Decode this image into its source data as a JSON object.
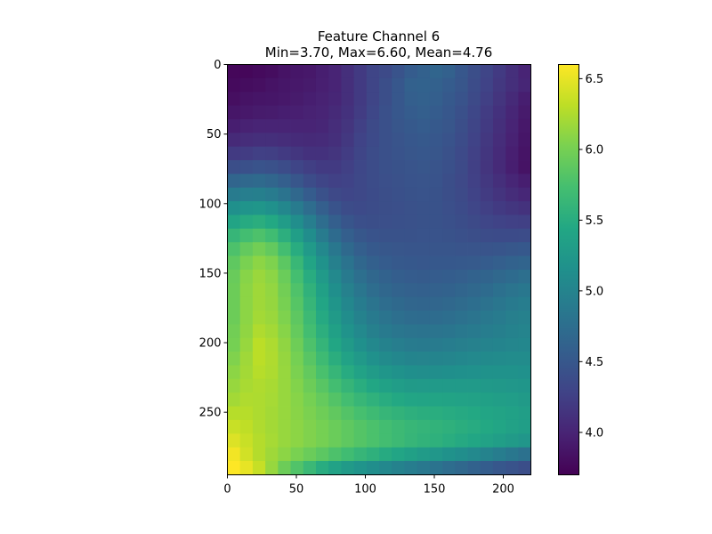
{
  "chart_data": {
    "type": "heatmap",
    "title_line1": "Feature Channel 6",
    "title_line2": "Min=3.70, Max=6.60, Mean=4.76",
    "xlabel": "",
    "ylabel": "",
    "xlim": [
      0,
      220
    ],
    "ylim": [
      0,
      295
    ],
    "y_inverted": true,
    "x_ticks": [
      {
        "value": 0,
        "label": "0"
      },
      {
        "value": 50,
        "label": "50"
      },
      {
        "value": 100,
        "label": "100"
      },
      {
        "value": 150,
        "label": "150"
      },
      {
        "value": 200,
        "label": "200"
      }
    ],
    "y_ticks": [
      {
        "value": 0,
        "label": "0"
      },
      {
        "value": 50,
        "label": "50"
      },
      {
        "value": 100,
        "label": "100"
      },
      {
        "value": 150,
        "label": "150"
      },
      {
        "value": 200,
        "label": "200"
      },
      {
        "value": 250,
        "label": "250"
      }
    ],
    "colormap": "viridis",
    "colorbar": {
      "range": [
        3.7,
        6.6
      ],
      "ticks": [
        {
          "value": 4.0,
          "label": "4.0"
        },
        {
          "value": 4.5,
          "label": "4.5"
        },
        {
          "value": 5.0,
          "label": "5.0"
        },
        {
          "value": 5.5,
          "label": "5.5"
        },
        {
          "value": 6.0,
          "label": "6.0"
        },
        {
          "value": 6.5,
          "label": "6.5"
        }
      ]
    },
    "grid": false,
    "cell_size": [
      9.17,
      9.83
    ],
    "values": [
      [
        3.75,
        3.75,
        3.78,
        3.8,
        3.85,
        3.88,
        3.9,
        3.95,
        4.0,
        4.1,
        4.2,
        4.3,
        4.35,
        4.45,
        4.55,
        4.6,
        4.65,
        4.6,
        4.5,
        4.4,
        4.3,
        4.2,
        4.1,
        4.0
      ],
      [
        3.78,
        3.8,
        3.82,
        3.85,
        3.88,
        3.9,
        3.92,
        3.96,
        4.0,
        4.1,
        4.2,
        4.3,
        4.4,
        4.5,
        4.6,
        4.62,
        4.6,
        4.55,
        4.48,
        4.38,
        4.28,
        4.18,
        4.1,
        4.02
      ],
      [
        3.82,
        3.85,
        3.87,
        3.88,
        3.9,
        3.92,
        3.95,
        3.98,
        4.02,
        4.1,
        4.2,
        4.3,
        4.4,
        4.5,
        4.58,
        4.6,
        4.58,
        4.52,
        4.45,
        4.35,
        4.25,
        4.15,
        4.05,
        3.95
      ],
      [
        3.88,
        3.9,
        3.92,
        3.93,
        3.95,
        3.96,
        3.98,
        4.0,
        4.05,
        4.12,
        4.22,
        4.32,
        4.42,
        4.5,
        4.55,
        4.58,
        4.55,
        4.5,
        4.42,
        4.32,
        4.22,
        4.12,
        4.02,
        3.92
      ],
      [
        3.95,
        3.98,
        4.0,
        4.0,
        4.0,
        4.0,
        4.0,
        4.02,
        4.08,
        4.15,
        4.25,
        4.35,
        4.42,
        4.48,
        4.52,
        4.55,
        4.52,
        4.48,
        4.4,
        4.3,
        4.2,
        4.1,
        4.0,
        3.9
      ],
      [
        4.05,
        4.08,
        4.1,
        4.1,
        4.08,
        4.06,
        4.05,
        4.06,
        4.1,
        4.18,
        4.28,
        4.36,
        4.42,
        4.46,
        4.5,
        4.52,
        4.5,
        4.45,
        4.38,
        4.28,
        4.18,
        4.08,
        3.98,
        3.88
      ],
      [
        4.2,
        4.22,
        4.25,
        4.24,
        4.2,
        4.16,
        4.12,
        4.12,
        4.15,
        4.22,
        4.3,
        4.38,
        4.42,
        4.45,
        4.48,
        4.5,
        4.48,
        4.43,
        4.36,
        4.26,
        4.16,
        4.06,
        3.96,
        3.86
      ],
      [
        4.4,
        4.42,
        4.45,
        4.43,
        4.38,
        4.3,
        4.24,
        4.2,
        4.2,
        4.25,
        4.32,
        4.38,
        4.42,
        4.44,
        4.46,
        4.48,
        4.46,
        4.42,
        4.35,
        4.25,
        4.15,
        4.05,
        3.95,
        3.85
      ],
      [
        4.65,
        4.68,
        4.7,
        4.66,
        4.58,
        4.48,
        4.38,
        4.3,
        4.26,
        4.28,
        4.33,
        4.38,
        4.41,
        4.43,
        4.45,
        4.46,
        4.45,
        4.4,
        4.34,
        4.26,
        4.18,
        4.1,
        4.02,
        3.95
      ],
      [
        4.9,
        4.93,
        4.95,
        4.9,
        4.8,
        4.68,
        4.55,
        4.43,
        4.34,
        4.31,
        4.33,
        4.37,
        4.4,
        4.42,
        4.44,
        4.45,
        4.44,
        4.4,
        4.35,
        4.28,
        4.21,
        4.14,
        4.08,
        4.03
      ],
      [
        5.15,
        5.2,
        5.22,
        5.16,
        5.04,
        4.9,
        4.74,
        4.58,
        4.45,
        4.38,
        4.36,
        4.38,
        4.4,
        4.41,
        4.43,
        4.44,
        4.44,
        4.41,
        4.37,
        4.31,
        4.25,
        4.2,
        4.16,
        4.13
      ],
      [
        5.4,
        5.48,
        5.52,
        5.45,
        5.3,
        5.12,
        4.93,
        4.74,
        4.58,
        4.47,
        4.41,
        4.4,
        4.41,
        4.42,
        4.43,
        4.44,
        4.44,
        4.42,
        4.39,
        4.35,
        4.31,
        4.28,
        4.26,
        4.25
      ],
      [
        5.62,
        5.72,
        5.78,
        5.7,
        5.53,
        5.33,
        5.11,
        4.9,
        4.72,
        4.58,
        4.49,
        4.45,
        4.44,
        4.44,
        4.44,
        4.45,
        4.45,
        4.44,
        4.42,
        4.4,
        4.38,
        4.37,
        4.37,
        4.38
      ],
      [
        5.78,
        5.9,
        5.98,
        5.9,
        5.72,
        5.5,
        5.27,
        5.05,
        4.85,
        4.69,
        4.58,
        4.52,
        4.49,
        4.48,
        4.47,
        4.47,
        4.47,
        4.47,
        4.46,
        4.46,
        4.46,
        4.47,
        4.49,
        4.51
      ],
      [
        5.88,
        6.02,
        6.1,
        6.04,
        5.86,
        5.64,
        5.4,
        5.17,
        4.96,
        4.8,
        4.67,
        4.59,
        4.55,
        4.52,
        4.51,
        4.5,
        4.51,
        4.51,
        4.52,
        4.53,
        4.55,
        4.58,
        4.61,
        4.64
      ],
      [
        5.93,
        6.08,
        6.16,
        6.1,
        5.94,
        5.73,
        5.5,
        5.27,
        5.06,
        4.89,
        4.76,
        4.67,
        4.61,
        4.57,
        4.55,
        4.54,
        4.55,
        4.56,
        4.58,
        4.61,
        4.64,
        4.68,
        4.72,
        4.76
      ],
      [
        5.95,
        6.1,
        6.18,
        6.13,
        5.98,
        5.79,
        5.57,
        5.35,
        5.14,
        4.97,
        4.84,
        4.74,
        4.67,
        4.63,
        4.6,
        4.59,
        4.6,
        4.62,
        4.65,
        4.68,
        4.72,
        4.77,
        4.81,
        4.85
      ],
      [
        5.95,
        6.1,
        6.18,
        6.14,
        6.01,
        5.83,
        5.62,
        5.41,
        5.21,
        5.04,
        4.91,
        4.81,
        4.74,
        4.69,
        4.66,
        4.65,
        4.66,
        4.68,
        4.71,
        4.75,
        4.79,
        4.84,
        4.88,
        4.92
      ],
      [
        5.95,
        6.1,
        6.2,
        6.16,
        6.04,
        5.87,
        5.67,
        5.47,
        5.28,
        5.11,
        4.98,
        4.88,
        4.81,
        4.76,
        4.73,
        4.72,
        4.73,
        4.75,
        4.78,
        4.82,
        4.86,
        4.9,
        4.94,
        4.97
      ],
      [
        5.98,
        6.12,
        6.25,
        6.2,
        6.08,
        5.91,
        5.72,
        5.53,
        5.35,
        5.19,
        5.06,
        4.96,
        4.89,
        4.84,
        4.81,
        4.8,
        4.81,
        4.83,
        4.86,
        4.89,
        4.92,
        4.95,
        4.98,
        5.0
      ],
      [
        6.0,
        6.15,
        6.3,
        6.24,
        6.12,
        5.96,
        5.78,
        5.6,
        5.43,
        5.28,
        5.15,
        5.05,
        4.98,
        4.93,
        4.9,
        4.89,
        4.9,
        4.92,
        4.94,
        4.97,
        4.99,
        5.01,
        5.03,
        5.04
      ],
      [
        6.05,
        6.18,
        6.3,
        6.25,
        6.14,
        6.0,
        5.84,
        5.68,
        5.52,
        5.38,
        5.26,
        5.16,
        5.09,
        5.04,
        5.01,
        5.0,
        5.01,
        5.02,
        5.04,
        5.06,
        5.08,
        5.09,
        5.1,
        5.1
      ],
      [
        6.1,
        6.2,
        6.28,
        6.24,
        6.15,
        6.03,
        5.9,
        5.76,
        5.62,
        5.49,
        5.38,
        5.29,
        5.22,
        5.17,
        5.14,
        5.13,
        5.13,
        5.14,
        5.15,
        5.16,
        5.17,
        5.17,
        5.17,
        5.16
      ],
      [
        6.15,
        6.22,
        6.25,
        6.22,
        6.15,
        6.06,
        5.95,
        5.84,
        5.72,
        5.61,
        5.51,
        5.43,
        5.36,
        5.31,
        5.28,
        5.27,
        5.27,
        5.27,
        5.27,
        5.27,
        5.26,
        5.25,
        5.24,
        5.22
      ],
      [
        6.2,
        6.25,
        6.24,
        6.21,
        6.15,
        6.08,
        6.0,
        5.91,
        5.81,
        5.72,
        5.63,
        5.56,
        5.5,
        5.45,
        5.42,
        5.4,
        5.4,
        5.39,
        5.38,
        5.37,
        5.35,
        5.33,
        5.31,
        5.28
      ],
      [
        6.28,
        6.28,
        6.24,
        6.2,
        6.15,
        6.09,
        6.03,
        5.96,
        5.89,
        5.81,
        5.74,
        5.68,
        5.62,
        5.58,
        5.54,
        5.52,
        5.51,
        5.49,
        5.47,
        5.45,
        5.42,
        5.39,
        5.36,
        5.33
      ],
      [
        6.36,
        6.32,
        6.25,
        6.2,
        6.15,
        6.1,
        6.05,
        6.0,
        5.94,
        5.88,
        5.82,
        5.77,
        5.72,
        5.67,
        5.63,
        5.6,
        5.58,
        5.55,
        5.52,
        5.49,
        5.45,
        5.41,
        5.37,
        5.33
      ],
      [
        6.45,
        6.36,
        6.27,
        6.21,
        6.15,
        6.1,
        6.05,
        6.0,
        5.94,
        5.88,
        5.82,
        5.77,
        5.72,
        5.67,
        5.62,
        5.58,
        5.55,
        5.51,
        5.47,
        5.43,
        5.38,
        5.33,
        5.28,
        5.23
      ],
      [
        6.55,
        6.4,
        6.27,
        6.18,
        6.1,
        6.02,
        5.94,
        5.86,
        5.78,
        5.7,
        5.62,
        5.55,
        5.48,
        5.41,
        5.35,
        5.29,
        5.24,
        5.18,
        5.12,
        5.06,
        4.99,
        4.92,
        4.85,
        4.78
      ],
      [
        6.6,
        6.5,
        6.35,
        6.15,
        5.95,
        5.8,
        5.65,
        5.5,
        5.38,
        5.28,
        5.2,
        5.12,
        5.05,
        4.98,
        4.92,
        4.86,
        4.8,
        4.74,
        4.68,
        4.62,
        4.56,
        4.5,
        4.45,
        4.4
      ]
    ]
  }
}
